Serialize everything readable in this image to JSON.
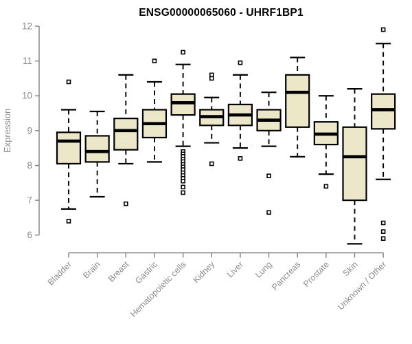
{
  "chart_data": {
    "type": "boxplot",
    "title": "ENSG00000065060 - UHRF1BP1",
    "ylabel": "Expression",
    "xlabel": "",
    "ylim": [
      6,
      12
    ],
    "yticks": [
      6,
      7,
      8,
      9,
      10,
      11,
      12
    ],
    "grid": false,
    "legend": null,
    "categories": [
      "Bladder",
      "Brain",
      "Breast",
      "Gastric",
      "Hematopoietic cells",
      "Kidney",
      "Liver",
      "Lung",
      "Pancreas",
      "Prostate",
      "Skin",
      "Unknown / Other"
    ],
    "boxes": [
      {
        "category": "Bladder",
        "whisker_low": 6.75,
        "q1": 8.05,
        "median": 8.7,
        "q3": 8.95,
        "whisker_high": 9.6,
        "outliers": [
          10.4,
          6.4
        ]
      },
      {
        "category": "Brain",
        "whisker_low": 7.1,
        "q1": 8.1,
        "median": 8.4,
        "q3": 8.85,
        "whisker_high": 9.55,
        "outliers": []
      },
      {
        "category": "Breast",
        "whisker_low": 8.05,
        "q1": 8.45,
        "median": 9.0,
        "q3": 9.35,
        "whisker_high": 10.6,
        "outliers": [
          6.9
        ]
      },
      {
        "category": "Gastric",
        "whisker_low": 8.1,
        "q1": 8.8,
        "median": 9.2,
        "q3": 9.6,
        "whisker_high": 10.4,
        "outliers": [
          11.0
        ]
      },
      {
        "category": "Hematopoietic cells",
        "whisker_low": 8.55,
        "q1": 9.45,
        "median": 9.8,
        "q3": 10.05,
        "whisker_high": 10.9,
        "outliers": [
          11.25,
          8.4,
          8.33,
          8.26,
          8.18,
          8.11,
          8.03,
          7.96,
          7.88,
          7.79,
          7.71,
          7.63,
          7.55,
          7.38,
          7.22
        ]
      },
      {
        "category": "Kidney",
        "whisker_low": 8.65,
        "q1": 9.15,
        "median": 9.4,
        "q3": 9.6,
        "whisker_high": 9.95,
        "outliers": [
          10.6,
          10.5,
          8.05
        ]
      },
      {
        "category": "Liver",
        "whisker_low": 8.5,
        "q1": 9.15,
        "median": 9.45,
        "q3": 9.75,
        "whisker_high": 10.6,
        "outliers": [
          10.95,
          8.2
        ]
      },
      {
        "category": "Lung",
        "whisker_low": 8.55,
        "q1": 9.0,
        "median": 9.3,
        "q3": 9.6,
        "whisker_high": 10.1,
        "outliers": [
          7.7,
          6.65
        ]
      },
      {
        "category": "Pancreas",
        "whisker_low": 8.25,
        "q1": 9.1,
        "median": 10.1,
        "q3": 10.6,
        "whisker_high": 11.1,
        "outliers": []
      },
      {
        "category": "Prostate",
        "whisker_low": 7.75,
        "q1": 8.6,
        "median": 8.9,
        "q3": 9.25,
        "whisker_high": 10.0,
        "outliers": [
          7.4
        ]
      },
      {
        "category": "Skin",
        "whisker_low": 5.75,
        "q1": 7.0,
        "median": 8.25,
        "q3": 9.1,
        "whisker_high": 10.2,
        "outliers": []
      },
      {
        "category": "Unknown / Other",
        "whisker_low": 7.6,
        "q1": 9.05,
        "median": 9.6,
        "q3": 10.05,
        "whisker_high": 11.5,
        "outliers": [
          11.9,
          6.35,
          6.1,
          5.9
        ]
      }
    ],
    "style": {
      "box_fill": "#EDE7C9",
      "box_stroke": "#000000",
      "median_color": "#000000",
      "whisker_color": "#000000",
      "outlier_shape": "open-square",
      "outlier_color": "#000000",
      "axis_color": "#7f7f7f",
      "tick_label_color": "#8c8c8c",
      "title_color": "#000000",
      "background": "#ffffff"
    }
  }
}
